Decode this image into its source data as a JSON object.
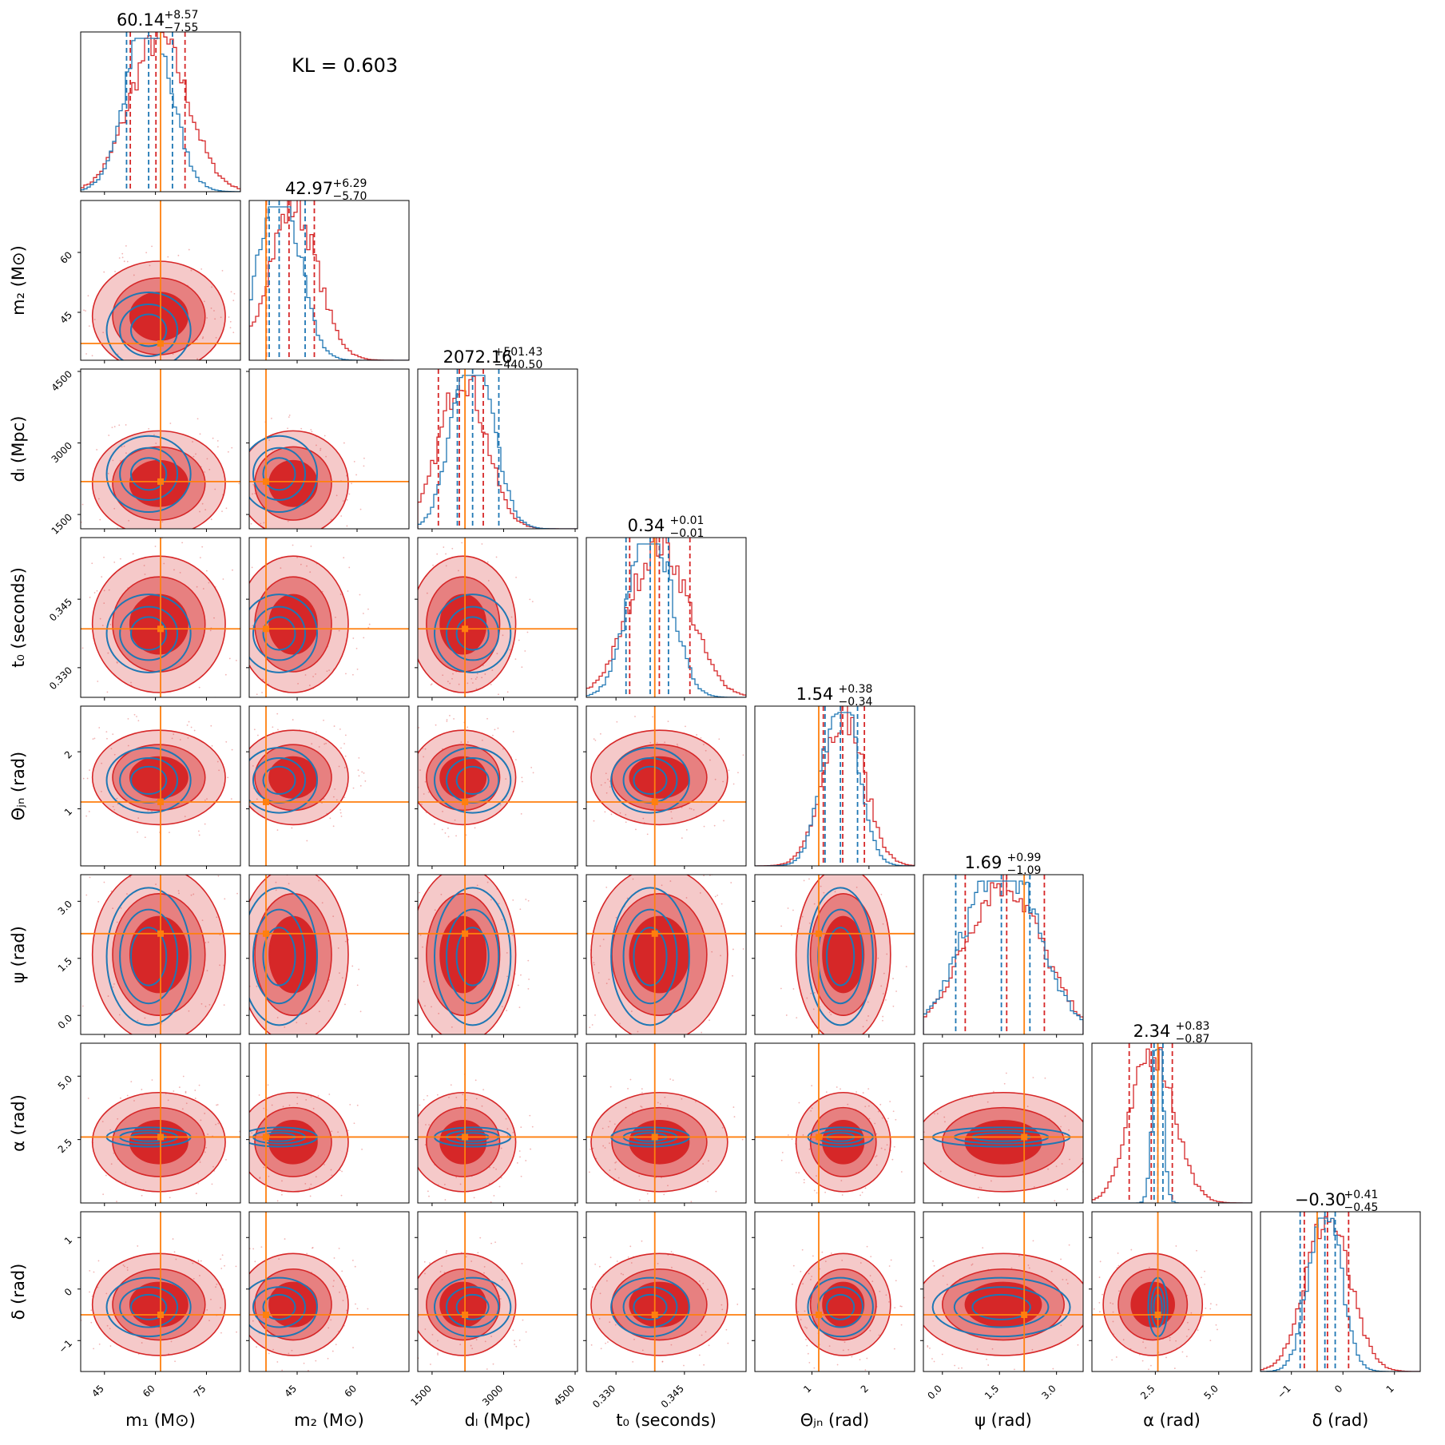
{
  "chart_data": {
    "type": "corner",
    "annotation": "KL = 0.603",
    "colors": {
      "series_a": "#d62728",
      "series_b": "#1f77b4",
      "truth": "#ff7f0e",
      "axis": "#000000"
    },
    "parameters": [
      {
        "key": "m1",
        "label": "m₁ (M⊙)",
        "title": "60.14",
        "err_plus": "+8.57",
        "err_minus": "−7.55",
        "range": [
          38,
          85
        ],
        "truth": 61.5,
        "ticks": [
          "45",
          "60",
          "75"
        ],
        "tick_values": [
          45,
          60,
          75
        ],
        "a_mean": 61,
        "a_sd": 8.5,
        "a_q": [
          52.6,
          60.14,
          68.7
        ],
        "b_mean": 58,
        "b_sd": 6.5,
        "b_q": [
          51.5,
          58,
          65
        ]
      },
      {
        "key": "m2",
        "label": "m₂ (M⊙)",
        "title": "42.97",
        "err_plus": "+6.29",
        "err_minus": "−5.70",
        "range": [
          33,
          73
        ],
        "truth": 37.2,
        "ticks": [
          "45",
          "60"
        ],
        "tick_values": [
          45,
          60
        ],
        "a_mean": 44,
        "a_sd": 6,
        "a_q": [
          37.3,
          42.97,
          49.3
        ],
        "b_mean": 40.5,
        "b_sd": 5,
        "b_q": [
          38,
          40.5,
          47
        ]
      },
      {
        "key": "dl",
        "label": "dₗ (Mpc)",
        "title": "2072.16",
        "err_plus": "+501.43",
        "err_minus": "−440.50",
        "range": [
          1200,
          4550
        ],
        "truth": 2190,
        "ticks": [
          "1500",
          "3000",
          "4500"
        ],
        "tick_values": [
          1500,
          3000,
          4500
        ],
        "a_mean": 2150,
        "a_sd": 480,
        "a_q": [
          1632,
          2072.16,
          2574
        ],
        "b_mean": 2350,
        "b_sd": 420,
        "b_q": [
          2030,
          2350,
          2900
        ]
      },
      {
        "key": "t0",
        "label": "t₀ (seconds)",
        "title": "0.34",
        "err_plus": "+0.01",
        "err_minus": "−0.01",
        "range": [
          0.3235,
          0.3585
        ],
        "truth": 0.3385,
        "ticks": [
          "0.330",
          "0.345"
        ],
        "tick_values": [
          0.33,
          0.345
        ],
        "a_mean": 0.3395,
        "a_sd": 0.0065,
        "a_q": [
          0.333,
          0.3395,
          0.3462
        ],
        "b_mean": 0.3375,
        "b_sd": 0.0045,
        "b_q": [
          0.3322,
          0.3375,
          0.3415
        ]
      },
      {
        "key": "thetajn",
        "label": "Θⱼₙ (rad)",
        "title": "1.54",
        "err_plus": "+0.38",
        "err_minus": "−0.34",
        "range": [
          0.0,
          2.8
        ],
        "truth": 1.12,
        "ticks": [
          "1",
          "2"
        ],
        "tick_values": [
          1,
          2
        ],
        "a_mean": 1.55,
        "a_sd": 0.36,
        "a_q": [
          1.2,
          1.54,
          1.92
        ],
        "b_mean": 1.5,
        "b_sd": 0.3,
        "b_q": [
          1.23,
          1.5,
          1.8
        ]
      },
      {
        "key": "psi",
        "label": "ψ (rad)",
        "title": "1.69",
        "err_plus": "+0.99",
        "err_minus": "−1.09",
        "range": [
          -0.5,
          3.7
        ],
        "truth": 2.15,
        "ticks": [
          "0.0",
          "1.5",
          "3.0"
        ],
        "tick_values": [
          0,
          1.5,
          3
        ],
        "a_mean": 1.6,
        "a_sd": 1.0,
        "a_q": [
          0.6,
          1.69,
          2.68
        ],
        "b_mean": 1.55,
        "b_sd": 0.95,
        "b_q": [
          0.35,
          1.55,
          2.3
        ]
      },
      {
        "key": "alpha",
        "label": "α (rad)",
        "title": "2.34",
        "err_plus": "+0.83",
        "err_minus": "−0.87",
        "range": [
          0.0,
          6.3
        ],
        "truth": 2.6,
        "ticks": [
          "2.5",
          "5.0"
        ],
        "tick_values": [
          2.5,
          5
        ],
        "a_mean": 2.4,
        "a_sd": 0.85,
        "a_q": [
          1.47,
          2.34,
          3.17
        ],
        "b_mean": 2.6,
        "b_sd": 0.2,
        "b_q": [
          2.45,
          2.6,
          2.8
        ]
      },
      {
        "key": "delta",
        "label": "δ (rad)",
        "title": "−0.30",
        "err_plus": "+0.41",
        "err_minus": "−0.45",
        "range": [
          -1.6,
          1.5
        ],
        "truth": -0.5,
        "ticks": [
          "−1",
          "0",
          "1"
        ],
        "tick_values": [
          -1,
          0,
          1
        ],
        "a_mean": -0.3,
        "a_sd": 0.43,
        "a_q": [
          -0.75,
          -0.3,
          0.11
        ],
        "b_mean": -0.35,
        "b_sd": 0.3,
        "b_q": [
          -0.83,
          -0.35,
          -0.15
        ]
      }
    ]
  }
}
